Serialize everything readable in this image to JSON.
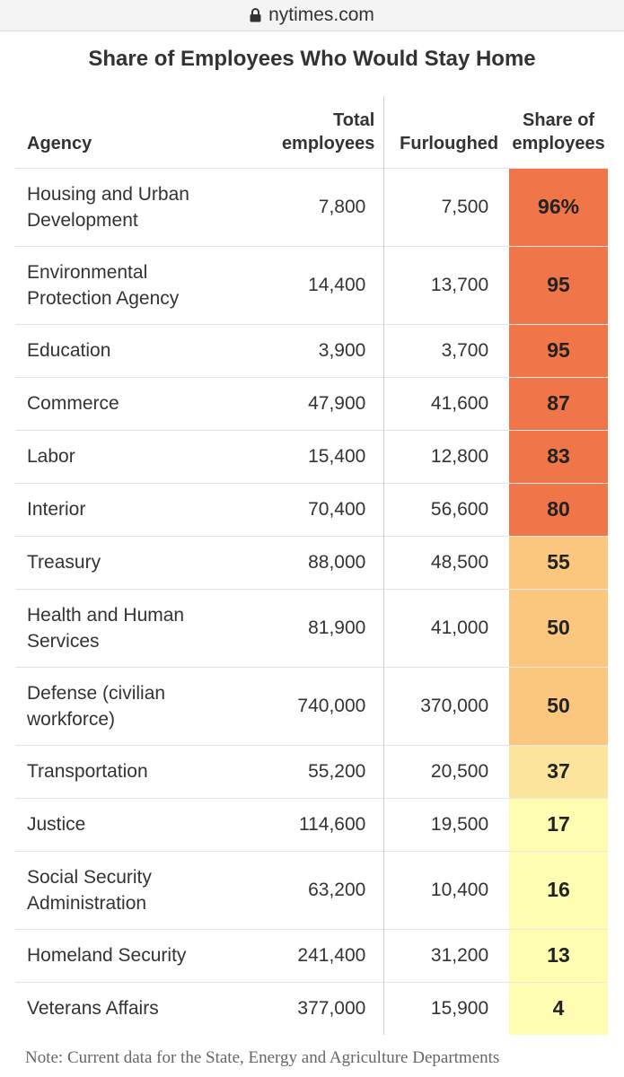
{
  "browser": {
    "url": "nytimes.com"
  },
  "title": "Share of Employees Who Would Stay Home",
  "headers": {
    "agency": "Agency",
    "total_line1": "Total",
    "total_line2": "employees",
    "furloughed": "Furloughed",
    "share_line1": "Share of",
    "share_line2": "employees"
  },
  "rows": [
    {
      "agency_l1": "Housing and Urban",
      "agency_l2": "Development",
      "total": "7,800",
      "furloughed": "7,500",
      "share": "96%",
      "color": "#f07548"
    },
    {
      "agency_l1": "Environmental",
      "agency_l2": "Protection Agency",
      "total": "14,400",
      "furloughed": "13,700",
      "share": "95",
      "color": "#f07548"
    },
    {
      "agency_l1": "Education",
      "agency_l2": "",
      "total": "3,900",
      "furloughed": "3,700",
      "share": "95",
      "color": "#f07548"
    },
    {
      "agency_l1": "Commerce",
      "agency_l2": "",
      "total": "47,900",
      "furloughed": "41,600",
      "share": "87",
      "color": "#f07548"
    },
    {
      "agency_l1": "Labor",
      "agency_l2": "",
      "total": "15,400",
      "furloughed": "12,800",
      "share": "83",
      "color": "#f07548"
    },
    {
      "agency_l1": "Interior",
      "agency_l2": "",
      "total": "70,400",
      "furloughed": "56,600",
      "share": "80",
      "color": "#f07548"
    },
    {
      "agency_l1": "Treasury",
      "agency_l2": "",
      "total": "88,000",
      "furloughed": "48,500",
      "share": "55",
      "color": "#fbc77f"
    },
    {
      "agency_l1": "Health and Human",
      "agency_l2": "Services",
      "total": "81,900",
      "furloughed": "41,000",
      "share": "50",
      "color": "#fbc77f"
    },
    {
      "agency_l1": "Defense (civilian",
      "agency_l2": "workforce)",
      "total": "740,000",
      "furloughed": "370,000",
      "share": "50",
      "color": "#fbc77f"
    },
    {
      "agency_l1": "Transportation",
      "agency_l2": "",
      "total": "55,200",
      "furloughed": "20,500",
      "share": "37",
      "color": "#fde49c"
    },
    {
      "agency_l1": "Justice",
      "agency_l2": "",
      "total": "114,600",
      "furloughed": "19,500",
      "share": "17",
      "color": "#fefdb2"
    },
    {
      "agency_l1": "Social Security",
      "agency_l2": "Administration",
      "total": "63,200",
      "furloughed": "10,400",
      "share": "16",
      "color": "#fefdb2"
    },
    {
      "agency_l1": "Homeland Security",
      "agency_l2": "",
      "total": "241,400",
      "furloughed": "31,200",
      "share": "13",
      "color": "#fefdb2"
    },
    {
      "agency_l1": "Veterans Affairs",
      "agency_l2": "",
      "total": "377,000",
      "furloughed": "15,900",
      "share": "4",
      "color": "#fefdb2"
    }
  ],
  "note": "Note: Current data for the State, Energy and Agriculture Departments"
}
